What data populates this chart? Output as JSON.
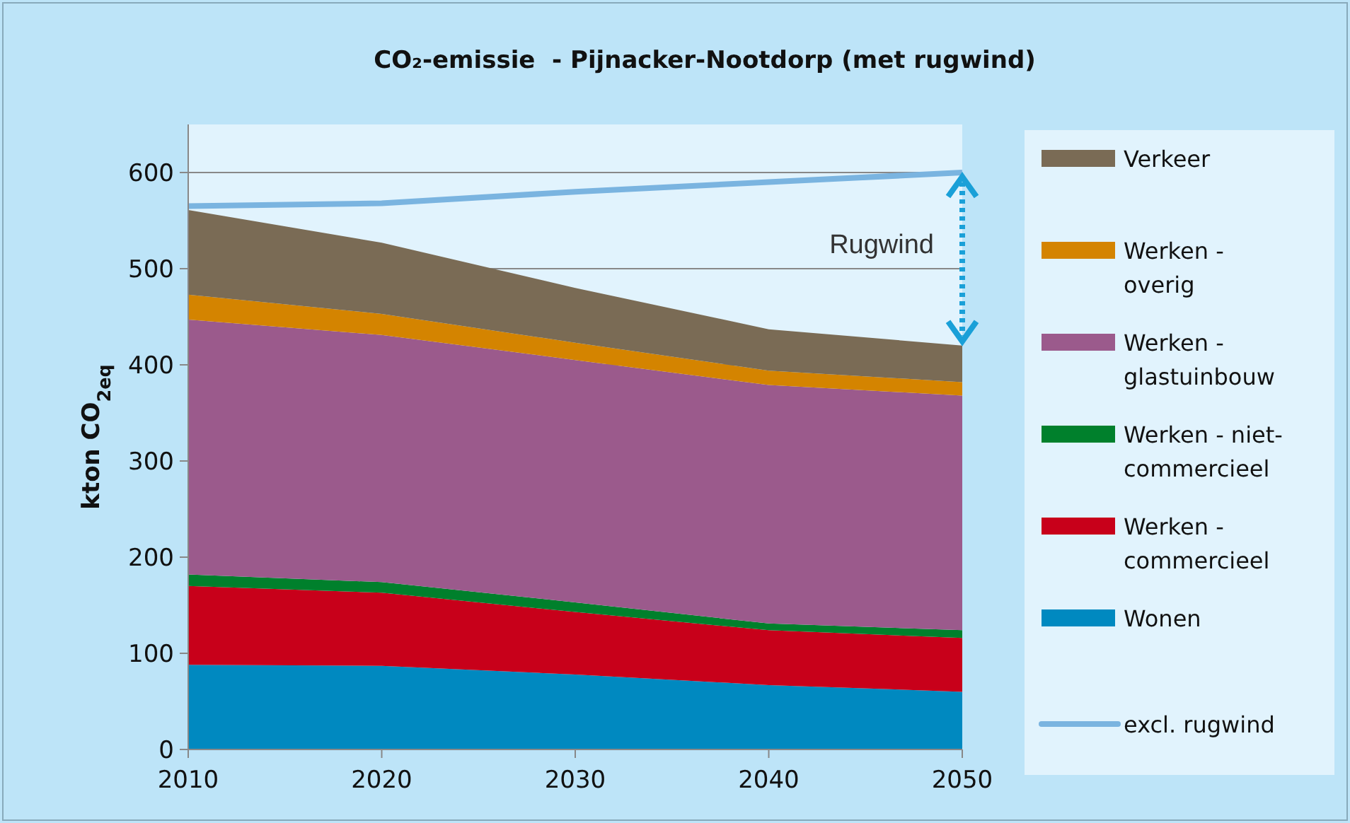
{
  "chart_data": {
    "type": "area",
    "stacked": true,
    "title": "CO₂-emissie  - Pijnacker-Nootdorp (met rugwind)",
    "ylabel": "kton CO$_{2eq}$",
    "x": [
      2010,
      2020,
      2030,
      2040,
      2050
    ],
    "xlim": [
      2010,
      2050
    ],
    "xticks": [
      2010,
      2020,
      2030,
      2040,
      2050
    ],
    "ylim": [
      0,
      650
    ],
    "yticks": [
      0,
      100,
      200,
      300,
      400,
      500,
      600
    ],
    "grid": "y",
    "legend": "right",
    "series": [
      {
        "name": "Wonen",
        "color": "#0089c0",
        "values": [
          88,
          87,
          78,
          67,
          60
        ]
      },
      {
        "name": "Werken - commercieel",
        "color": "#c8001a",
        "values": [
          82,
          76,
          65,
          57,
          56
        ]
      },
      {
        "name": "Werken - niet-commercieel",
        "color": "#00802c",
        "values": [
          12,
          11,
          10,
          7,
          8
        ]
      },
      {
        "name": "Werken - glastuinbouw",
        "color": "#9b5a8c",
        "values": [
          265,
          257,
          252,
          248,
          244
        ]
      },
      {
        "name": "Werken - overig",
        "color": "#d48400",
        "values": [
          26,
          22,
          18,
          15,
          14
        ]
      },
      {
        "name": "Verkeer",
        "color": "#7a6b55",
        "values": [
          88,
          74,
          57,
          43,
          38
        ]
      },
      {
        "name": "excl. rugwind",
        "type": "line",
        "color": "#7ab4e0",
        "values": [
          565,
          568,
          580,
          590,
          600
        ]
      }
    ],
    "annotations": [
      "Rugwind"
    ]
  }
}
